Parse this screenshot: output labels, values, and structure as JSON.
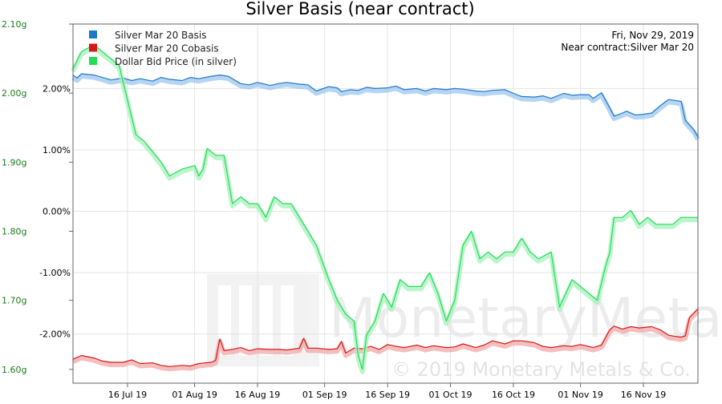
{
  "chart_data": {
    "type": "line",
    "title": "Silver Basis (near contract)",
    "info": {
      "date": "Fri, Nov 29, 2019",
      "contract": "Near contract:Silver Mar 20"
    },
    "watermark": {
      "brand": "MonetaryMetals",
      "copyright": "© 2019 Monetary Metals & Co."
    },
    "x_range": [
      "2019-07-03",
      "2019-11-29"
    ],
    "x_ticks": [
      {
        "date": "2019-07-16",
        "label": "16 Jul 19"
      },
      {
        "date": "2019-08-01",
        "label": "01 Aug 19"
      },
      {
        "date": "2019-08-16",
        "label": "16 Aug 19"
      },
      {
        "date": "2019-09-01",
        "label": "01 Sep 19"
      },
      {
        "date": "2019-09-16",
        "label": "16 Sep 19"
      },
      {
        "date": "2019-10-01",
        "label": "01 Oct 19"
      },
      {
        "date": "2019-10-16",
        "label": "16 Oct 19"
      },
      {
        "date": "2019-11-01",
        "label": "01 Nov 19"
      },
      {
        "date": "2019-11-16",
        "label": "16 Nov 19"
      }
    ],
    "y_left": {
      "range": [
        1.58,
        2.1
      ],
      "ticks": [
        {
          "value": 2.1,
          "label": "2.10g"
        },
        {
          "value": 2.0,
          "label": "2.00g"
        },
        {
          "value": 1.9,
          "label": "1.90g"
        },
        {
          "value": 1.8,
          "label": "1.80g"
        },
        {
          "value": 1.7,
          "label": "1.70g"
        },
        {
          "value": 1.6,
          "label": "1.60g"
        }
      ]
    },
    "y_right": {
      "range": [
        -2.8,
        3.05
      ],
      "ticks": [
        {
          "value": 2,
          "label": "2.00%"
        },
        {
          "value": 1,
          "label": "1.00%"
        },
        {
          "value": 0,
          "label": "0.00%"
        },
        {
          "value": -1,
          "label": "-1.00%"
        },
        {
          "value": -2,
          "label": "-2.00%"
        }
      ]
    },
    "grid": true,
    "legend_position": "top-left",
    "series": [
      {
        "name": "Silver Mar 20 Basis",
        "axis": "right",
        "color": "#1f78c8",
        "glow": "#9cc7ee",
        "points": [
          [
            "2019-07-03",
            2.22
          ],
          [
            "2019-07-04",
            2.17
          ],
          [
            "2019-07-05",
            2.24
          ],
          [
            "2019-07-08",
            2.22
          ],
          [
            "2019-07-10",
            2.18
          ],
          [
            "2019-07-12",
            2.14
          ],
          [
            "2019-07-15",
            2.17
          ],
          [
            "2019-07-17",
            2.13
          ],
          [
            "2019-07-19",
            2.16
          ],
          [
            "2019-07-22",
            2.12
          ],
          [
            "2019-07-24",
            2.18
          ],
          [
            "2019-07-26",
            2.15
          ],
          [
            "2019-07-29",
            2.13
          ],
          [
            "2019-07-31",
            2.18
          ],
          [
            "2019-08-02",
            2.16
          ],
          [
            "2019-08-05",
            2.2
          ],
          [
            "2019-08-07",
            2.22
          ],
          [
            "2019-08-09",
            2.2
          ],
          [
            "2019-08-12",
            2.08
          ],
          [
            "2019-08-14",
            2.06
          ],
          [
            "2019-08-16",
            2.1
          ],
          [
            "2019-08-19",
            2.05
          ],
          [
            "2019-08-21",
            2.08
          ],
          [
            "2019-08-23",
            2.1
          ],
          [
            "2019-08-26",
            2.07
          ],
          [
            "2019-08-28",
            2.06
          ],
          [
            "2019-08-30",
            1.96
          ],
          [
            "2019-09-02",
            2.03
          ],
          [
            "2019-09-04",
            2.01
          ],
          [
            "2019-09-05",
            1.95
          ],
          [
            "2019-09-07",
            1.98
          ],
          [
            "2019-09-09",
            1.97
          ],
          [
            "2019-09-11",
            2.02
          ],
          [
            "2019-09-13",
            2.0
          ],
          [
            "2019-09-16",
            2.01
          ],
          [
            "2019-09-18",
            2.04
          ],
          [
            "2019-09-20",
            1.98
          ],
          [
            "2019-09-23",
            2.0
          ],
          [
            "2019-09-25",
            1.96
          ],
          [
            "2019-09-27",
            2.0
          ],
          [
            "2019-09-30",
            1.98
          ],
          [
            "2019-10-02",
            2.0
          ],
          [
            "2019-10-04",
            1.99
          ],
          [
            "2019-10-07",
            1.96
          ],
          [
            "2019-10-09",
            1.95
          ],
          [
            "2019-10-11",
            1.97
          ],
          [
            "2019-10-14",
            1.98
          ],
          [
            "2019-10-16",
            1.92
          ],
          [
            "2019-10-18",
            1.87
          ],
          [
            "2019-10-21",
            1.86
          ],
          [
            "2019-10-23",
            1.88
          ],
          [
            "2019-10-25",
            1.84
          ],
          [
            "2019-10-28",
            1.92
          ],
          [
            "2019-10-30",
            1.89
          ],
          [
            "2019-11-01",
            1.9
          ],
          [
            "2019-11-03",
            1.9
          ],
          [
            "2019-11-04",
            1.84
          ],
          [
            "2019-11-06",
            1.93
          ],
          [
            "2019-11-08",
            1.68
          ],
          [
            "2019-11-09",
            1.55
          ],
          [
            "2019-11-11",
            1.6
          ],
          [
            "2019-11-12",
            1.63
          ],
          [
            "2019-11-14",
            1.57
          ],
          [
            "2019-11-16",
            1.58
          ],
          [
            "2019-11-18",
            1.6
          ],
          [
            "2019-11-20",
            1.72
          ],
          [
            "2019-11-22",
            1.82
          ],
          [
            "2019-11-25",
            1.79
          ],
          [
            "2019-11-26",
            1.48
          ],
          [
            "2019-11-28",
            1.33
          ],
          [
            "2019-11-29",
            1.21
          ]
        ]
      },
      {
        "name": "Silver Mar 20 Cobasis",
        "axis": "right",
        "color": "#d81818",
        "glow": "#f2a8a8",
        "points": [
          [
            "2019-07-03",
            -2.41
          ],
          [
            "2019-07-05",
            -2.35
          ],
          [
            "2019-07-08",
            -2.39
          ],
          [
            "2019-07-10",
            -2.44
          ],
          [
            "2019-07-12",
            -2.46
          ],
          [
            "2019-07-15",
            -2.46
          ],
          [
            "2019-07-17",
            -2.42
          ],
          [
            "2019-07-19",
            -2.48
          ],
          [
            "2019-07-22",
            -2.47
          ],
          [
            "2019-07-24",
            -2.51
          ],
          [
            "2019-07-26",
            -2.53
          ],
          [
            "2019-07-29",
            -2.51
          ],
          [
            "2019-07-31",
            -2.52
          ],
          [
            "2019-08-02",
            -2.48
          ],
          [
            "2019-08-05",
            -2.46
          ],
          [
            "2019-08-06",
            -2.43
          ],
          [
            "2019-08-07",
            -2.08
          ],
          [
            "2019-08-08",
            -2.27
          ],
          [
            "2019-08-10",
            -2.25
          ],
          [
            "2019-08-12",
            -2.22
          ],
          [
            "2019-08-14",
            -2.27
          ],
          [
            "2019-08-16",
            -2.24
          ],
          [
            "2019-08-19",
            -2.25
          ],
          [
            "2019-08-21",
            -2.25
          ],
          [
            "2019-08-23",
            -2.26
          ],
          [
            "2019-08-26",
            -2.23
          ],
          [
            "2019-08-27",
            -2.07
          ],
          [
            "2019-08-28",
            -2.23
          ],
          [
            "2019-08-30",
            -2.23
          ],
          [
            "2019-09-02",
            -2.25
          ],
          [
            "2019-09-04",
            -2.24
          ],
          [
            "2019-09-05",
            -2.12
          ],
          [
            "2019-09-06",
            -2.31
          ],
          [
            "2019-09-08",
            -2.23
          ],
          [
            "2019-09-10",
            -2.24
          ],
          [
            "2019-09-12",
            -2.2
          ],
          [
            "2019-09-14",
            -2.25
          ],
          [
            "2019-09-16",
            -2.17
          ],
          [
            "2019-09-18",
            -2.2
          ],
          [
            "2019-09-20",
            -2.22
          ],
          [
            "2019-09-23",
            -2.18
          ],
          [
            "2019-09-25",
            -2.22
          ],
          [
            "2019-09-27",
            -2.19
          ],
          [
            "2019-09-30",
            -2.22
          ],
          [
            "2019-10-02",
            -2.21
          ],
          [
            "2019-10-04",
            -2.16
          ],
          [
            "2019-10-07",
            -2.22
          ],
          [
            "2019-10-09",
            -2.18
          ],
          [
            "2019-10-11",
            -2.11
          ],
          [
            "2019-10-14",
            -2.16
          ],
          [
            "2019-10-16",
            -2.11
          ],
          [
            "2019-10-18",
            -2.11
          ],
          [
            "2019-10-21",
            -2.14
          ],
          [
            "2019-10-23",
            -2.2
          ],
          [
            "2019-10-25",
            -2.22
          ],
          [
            "2019-10-28",
            -2.19
          ],
          [
            "2019-10-30",
            -2.2
          ],
          [
            "2019-11-01",
            -2.17
          ],
          [
            "2019-11-04",
            -2.22
          ],
          [
            "2019-11-06",
            -2.18
          ],
          [
            "2019-11-08",
            -1.93
          ],
          [
            "2019-11-09",
            -1.87
          ],
          [
            "2019-11-11",
            -1.92
          ],
          [
            "2019-11-13",
            -1.88
          ],
          [
            "2019-11-15",
            -1.9
          ],
          [
            "2019-11-18",
            -1.88
          ],
          [
            "2019-11-20",
            -1.93
          ],
          [
            "2019-11-22",
            -2.02
          ],
          [
            "2019-11-25",
            -2.05
          ],
          [
            "2019-11-26",
            -2.03
          ],
          [
            "2019-11-27",
            -1.73
          ],
          [
            "2019-11-29",
            -1.59
          ]
        ]
      },
      {
        "name": "Dollar Bid Price (in silver)",
        "axis": "left",
        "color": "#22dd55",
        "glow": "#a6f2bc",
        "points": [
          [
            "2019-07-03",
            2.035
          ],
          [
            "2019-07-05",
            2.06
          ],
          [
            "2019-07-08",
            2.07
          ],
          [
            "2019-07-10",
            2.06
          ],
          [
            "2019-07-12",
            2.05
          ],
          [
            "2019-07-14",
            2.04
          ],
          [
            "2019-07-16",
            1.99
          ],
          [
            "2019-07-18",
            1.94
          ],
          [
            "2019-07-20",
            1.93
          ],
          [
            "2019-07-24",
            1.9
          ],
          [
            "2019-07-26",
            1.88
          ],
          [
            "2019-07-29",
            1.89
          ],
          [
            "2019-08-01",
            1.895
          ],
          [
            "2019-08-02",
            1.88
          ],
          [
            "2019-08-03",
            1.89
          ],
          [
            "2019-08-04",
            1.92
          ],
          [
            "2019-08-06",
            1.91
          ],
          [
            "2019-08-08",
            1.91
          ],
          [
            "2019-08-10",
            1.84
          ],
          [
            "2019-08-12",
            1.85
          ],
          [
            "2019-08-14",
            1.84
          ],
          [
            "2019-08-16",
            1.84
          ],
          [
            "2019-08-18",
            1.82
          ],
          [
            "2019-08-20",
            1.85
          ],
          [
            "2019-08-22",
            1.84
          ],
          [
            "2019-08-24",
            1.84
          ],
          [
            "2019-08-26",
            1.82
          ],
          [
            "2019-08-28",
            1.8
          ],
          [
            "2019-08-30",
            1.78
          ],
          [
            "2019-09-02",
            1.73
          ],
          [
            "2019-09-04",
            1.7
          ],
          [
            "2019-09-06",
            1.68
          ],
          [
            "2019-09-08",
            1.67
          ],
          [
            "2019-09-09",
            1.62
          ],
          [
            "2019-09-10",
            1.6
          ],
          [
            "2019-09-11",
            1.65
          ],
          [
            "2019-09-13",
            1.67
          ],
          [
            "2019-09-15",
            1.71
          ],
          [
            "2019-09-17",
            1.69
          ],
          [
            "2019-09-19",
            1.73
          ],
          [
            "2019-09-21",
            1.72
          ],
          [
            "2019-09-24",
            1.72
          ],
          [
            "2019-09-26",
            1.74
          ],
          [
            "2019-09-28",
            1.71
          ],
          [
            "2019-09-30",
            1.67
          ],
          [
            "2019-10-02",
            1.7
          ],
          [
            "2019-10-04",
            1.78
          ],
          [
            "2019-10-06",
            1.8
          ],
          [
            "2019-10-08",
            1.76
          ],
          [
            "2019-10-10",
            1.77
          ],
          [
            "2019-10-12",
            1.76
          ],
          [
            "2019-10-14",
            1.77
          ],
          [
            "2019-10-16",
            1.77
          ],
          [
            "2019-10-18",
            1.79
          ],
          [
            "2019-10-20",
            1.77
          ],
          [
            "2019-10-22",
            1.76
          ],
          [
            "2019-10-25",
            1.77
          ],
          [
            "2019-10-27",
            1.69
          ],
          [
            "2019-10-30",
            1.73
          ],
          [
            "2019-11-01",
            1.72
          ],
          [
            "2019-11-03",
            1.71
          ],
          [
            "2019-11-05",
            1.7
          ],
          [
            "2019-11-07",
            1.75
          ],
          [
            "2019-11-08",
            1.77
          ],
          [
            "2019-11-09",
            1.82
          ],
          [
            "2019-11-11",
            1.82
          ],
          [
            "2019-11-13",
            1.83
          ],
          [
            "2019-11-15",
            1.81
          ],
          [
            "2019-11-17",
            1.82
          ],
          [
            "2019-11-19",
            1.81
          ],
          [
            "2019-11-21",
            1.81
          ],
          [
            "2019-11-23",
            1.81
          ],
          [
            "2019-11-25",
            1.82
          ],
          [
            "2019-11-27",
            1.82
          ],
          [
            "2019-11-29",
            1.82
          ]
        ]
      }
    ]
  }
}
